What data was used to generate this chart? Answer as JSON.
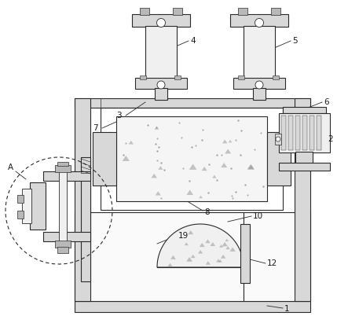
{
  "background_color": "#ffffff",
  "line_color": "#2a2a2a",
  "fill_light": "#f0f0f0",
  "fill_med": "#d8d8d8",
  "fill_dark": "#b8b8b8",
  "fill_white": "#fafafa"
}
